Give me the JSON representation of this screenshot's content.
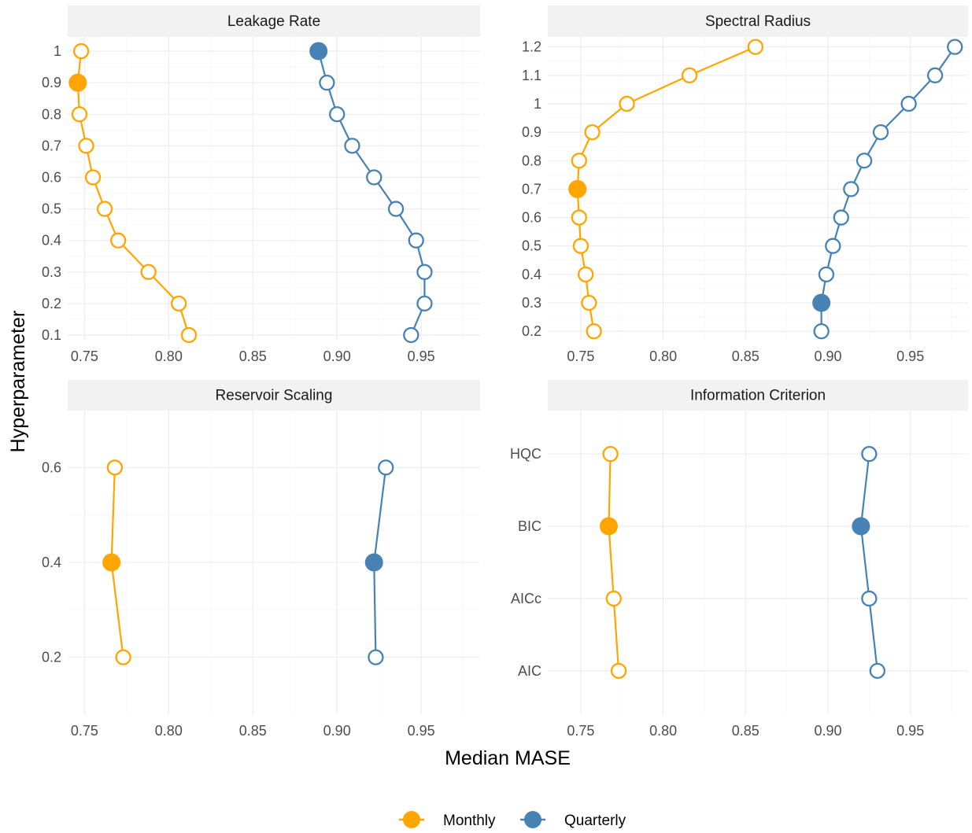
{
  "chart_data": {
    "type": "line",
    "layout": "facet-grid-2x2",
    "xlabel": "Median MASE",
    "ylabel": "Hyperparameter",
    "grid": true,
    "legend": {
      "position": "bottom",
      "entries": [
        {
          "name": "Monthly",
          "color": "#FFA500"
        },
        {
          "name": "Quarterly",
          "color": "#4682B4"
        }
      ]
    },
    "marker_note": "filled marker = selected (best) value; open markers = other values",
    "facets": [
      {
        "title": "Leakage Rate",
        "xlim": [
          0.74,
          0.985
        ],
        "xticks": [
          "0.75",
          "0.80",
          "0.85",
          "0.90",
          "0.95"
        ],
        "xtick_values": [
          0.75,
          0.8,
          0.85,
          0.9,
          0.95
        ],
        "y_type": "numeric",
        "ylim": [
          0.085,
          1.045
        ],
        "yticks": [
          "0.1",
          "0.2",
          "0.3",
          "0.4",
          "0.5",
          "0.6",
          "0.7",
          "0.8",
          "0.9",
          "1"
        ],
        "ytick_values": [
          0.1,
          0.2,
          0.3,
          0.4,
          0.5,
          0.6,
          0.7,
          0.8,
          0.9,
          1.0
        ],
        "series": [
          {
            "name": "Monthly",
            "color": "#FFA500",
            "selected": 0.9,
            "points": [
              [
                0.812,
                0.1
              ],
              [
                0.806,
                0.2
              ],
              [
                0.788,
                0.3
              ],
              [
                0.77,
                0.4
              ],
              [
                0.762,
                0.5
              ],
              [
                0.755,
                0.6
              ],
              [
                0.751,
                0.7
              ],
              [
                0.747,
                0.8
              ],
              [
                0.746,
                0.9
              ],
              [
                0.748,
                1.0
              ]
            ]
          },
          {
            "name": "Quarterly",
            "color": "#4682B4",
            "selected": 1.0,
            "points": [
              [
                0.944,
                0.1
              ],
              [
                0.952,
                0.2
              ],
              [
                0.952,
                0.3
              ],
              [
                0.947,
                0.4
              ],
              [
                0.935,
                0.5
              ],
              [
                0.922,
                0.6
              ],
              [
                0.909,
                0.7
              ],
              [
                0.9,
                0.8
              ],
              [
                0.894,
                0.9
              ],
              [
                0.889,
                1.0
              ]
            ]
          }
        ]
      },
      {
        "title": "Spectral Radius",
        "xlim": [
          0.73,
          0.985
        ],
        "xticks": [
          "0.75",
          "0.80",
          "0.85",
          "0.90",
          "0.95"
        ],
        "xtick_values": [
          0.75,
          0.8,
          0.85,
          0.9,
          0.95
        ],
        "y_type": "numeric",
        "ylim": [
          0.17,
          1.235
        ],
        "yticks": [
          "0.2",
          "0.3",
          "0.4",
          "0.5",
          "0.6",
          "0.7",
          "0.8",
          "0.9",
          "1",
          "1.1",
          "1.2"
        ],
        "ytick_values": [
          0.2,
          0.3,
          0.4,
          0.5,
          0.6,
          0.7,
          0.8,
          0.9,
          1.0,
          1.1,
          1.2
        ],
        "series": [
          {
            "name": "Monthly",
            "color": "#FFA500",
            "selected": 0.7,
            "points": [
              [
                0.758,
                0.2
              ],
              [
                0.755,
                0.3
              ],
              [
                0.753,
                0.4
              ],
              [
                0.75,
                0.5
              ],
              [
                0.749,
                0.6
              ],
              [
                0.748,
                0.7
              ],
              [
                0.749,
                0.8
              ],
              [
                0.757,
                0.9
              ],
              [
                0.778,
                1.0
              ],
              [
                0.816,
                1.1
              ],
              [
                0.856,
                1.2
              ]
            ]
          },
          {
            "name": "Quarterly",
            "color": "#4682B4",
            "selected": 0.3,
            "points": [
              [
                0.896,
                0.2
              ],
              [
                0.896,
                0.3
              ],
              [
                0.899,
                0.4
              ],
              [
                0.903,
                0.5
              ],
              [
                0.908,
                0.6
              ],
              [
                0.914,
                0.7
              ],
              [
                0.922,
                0.8
              ],
              [
                0.932,
                0.9
              ],
              [
                0.949,
                1.0
              ],
              [
                0.965,
                1.1
              ],
              [
                0.977,
                1.2
              ]
            ]
          }
        ]
      },
      {
        "title": "Reservoir Scaling",
        "xlim": [
          0.74,
          0.985
        ],
        "xticks": [
          "0.75",
          "0.80",
          "0.85",
          "0.90",
          "0.95"
        ],
        "xtick_values": [
          0.75,
          0.8,
          0.85,
          0.9,
          0.95
        ],
        "y_type": "numeric",
        "ylim": [
          0.08,
          0.72
        ],
        "yticks": [
          "0.2",
          "0.4",
          "0.6"
        ],
        "ytick_values": [
          0.2,
          0.4,
          0.6
        ],
        "series": [
          {
            "name": "Monthly",
            "color": "#FFA500",
            "selected": 0.4,
            "points": [
              [
                0.773,
                0.2
              ],
              [
                0.766,
                0.4
              ],
              [
                0.768,
                0.6
              ]
            ]
          },
          {
            "name": "Quarterly",
            "color": "#4682B4",
            "selected": 0.4,
            "points": [
              [
                0.923,
                0.2
              ],
              [
                0.922,
                0.4
              ],
              [
                0.929,
                0.6
              ]
            ]
          }
        ]
      },
      {
        "title": "Information Criterion",
        "xlim": [
          0.73,
          0.985
        ],
        "xticks": [
          "0.75",
          "0.80",
          "0.85",
          "0.90",
          "0.95"
        ],
        "xtick_values": [
          0.75,
          0.8,
          0.85,
          0.9,
          0.95
        ],
        "y_type": "categorical",
        "ylim": [
          0.4,
          4.6
        ],
        "yticks": [
          "AIC",
          "AICc",
          "BIC",
          "HQC"
        ],
        "ytick_values": [
          1,
          2,
          3,
          4
        ],
        "series": [
          {
            "name": "Monthly",
            "color": "#FFA500",
            "selected": 3,
            "points": [
              [
                0.773,
                1
              ],
              [
                0.77,
                2
              ],
              [
                0.767,
                3
              ],
              [
                0.768,
                4
              ]
            ]
          },
          {
            "name": "Quarterly",
            "color": "#4682B4",
            "selected": 3,
            "points": [
              [
                0.93,
                1
              ],
              [
                0.925,
                2
              ],
              [
                0.92,
                3
              ],
              [
                0.925,
                4
              ]
            ]
          }
        ]
      }
    ]
  }
}
